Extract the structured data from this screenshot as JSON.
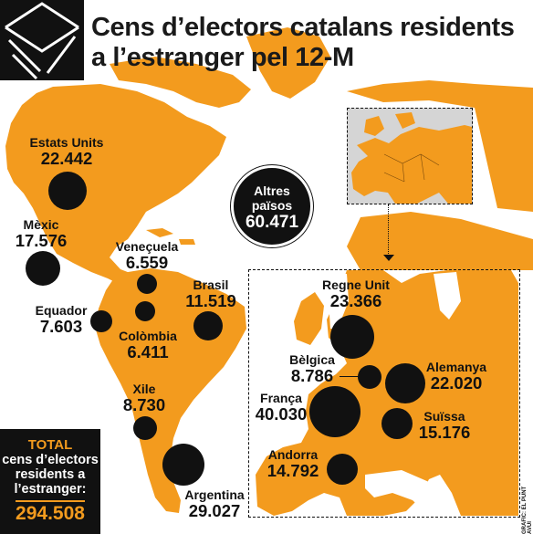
{
  "title": "Cens d’electors catalans residents a l’estranger pel 12-M",
  "colors": {
    "land": "#f39b1e",
    "ocean": "#ffffff",
    "bubble": "#111111",
    "inset_bg": "#d5d5d5"
  },
  "icons": {
    "logo": "envelope-icon"
  },
  "countries": [
    {
      "name": "Estats Units",
      "value": "22.442",
      "count": 22442
    },
    {
      "name": "Mèxic",
      "value": "17.576",
      "count": 17576
    },
    {
      "name": "Veneçuela",
      "value": "6.559",
      "count": 6559
    },
    {
      "name": "Brasil",
      "value": "11.519",
      "count": 11519
    },
    {
      "name": "Equador",
      "value": "7.603",
      "count": 7603
    },
    {
      "name": "Colòmbia",
      "value": "6.411",
      "count": 6411
    },
    {
      "name": "Xile",
      "value": "8.730",
      "count": 8730
    },
    {
      "name": "Argentina",
      "value": "29.027",
      "count": 29027
    },
    {
      "name": "Regne Unit",
      "value": "23.366",
      "count": 23366
    },
    {
      "name": "Bèlgica",
      "value": "8.786",
      "count": 8786
    },
    {
      "name": "Alemanya",
      "value": "22.020",
      "count": 22020
    },
    {
      "name": "França",
      "value": "40.030",
      "count": 40030
    },
    {
      "name": "Suïssa",
      "value": "15.176",
      "count": 15176
    },
    {
      "name": "Andorra",
      "value": "14.792",
      "count": 14792
    }
  ],
  "altres": {
    "name": "Altres països",
    "value": "60.471"
  },
  "total": {
    "label": "TOTAL",
    "text": "cens d’electors residents a l’estranger:",
    "value": "294.508"
  },
  "credit": "GRÀFIC: EL PUNT AVUI"
}
